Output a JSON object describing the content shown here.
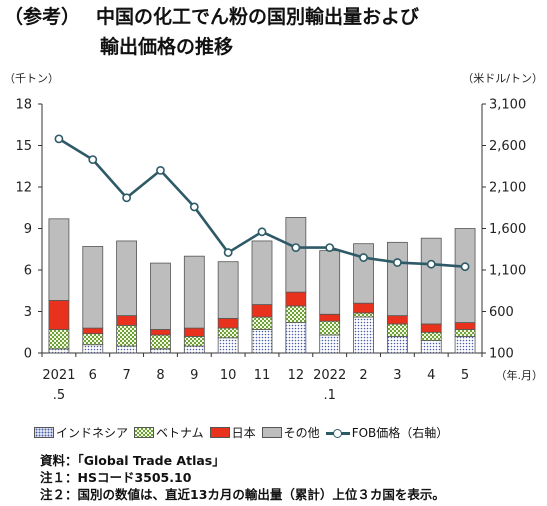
{
  "title": {
    "prefix": "（参考）",
    "line1": "中国の化工でん粉の国別輸出量および",
    "line2": "輸出価格の推移"
  },
  "chart_data": {
    "type": "bar",
    "stacked": true,
    "categories": [
      "2021\n.5",
      "6",
      "7",
      "8",
      "9",
      "10",
      "11",
      "12",
      "2022\n.1",
      "2",
      "3",
      "4",
      "5"
    ],
    "xlabel": "（年.月）",
    "ylabel_left": "（千トン）",
    "ylabel_right": "（米ドル/トン）",
    "ylim_left": [
      0,
      18
    ],
    "yticks_left": [
      0,
      3,
      6,
      9,
      12,
      15,
      18
    ],
    "ylim_right": [
      100,
      3100
    ],
    "yticks_right": [
      100,
      600,
      1100,
      1600,
      2100,
      2600,
      3100
    ],
    "grid": false,
    "legend_position": "bottom",
    "series": [
      {
        "name": "インドネシア",
        "color": "#4a5fa8",
        "values": [
          0.3,
          0.6,
          0.5,
          0.3,
          0.5,
          1.1,
          1.7,
          2.2,
          1.3,
          2.6,
          1.2,
          0.9,
          1.2
        ]
      },
      {
        "name": "ベトナム",
        "color": "#6ea03c",
        "values": [
          1.4,
          0.8,
          1.5,
          1.0,
          0.7,
          0.7,
          0.9,
          1.2,
          1.0,
          0.3,
          0.9,
          0.6,
          0.5
        ]
      },
      {
        "name": "日本",
        "color": "#e8321e",
        "values": [
          2.1,
          0.4,
          0.7,
          0.4,
          0.6,
          0.7,
          0.9,
          1.0,
          0.5,
          0.7,
          0.6,
          0.6,
          0.5
        ]
      },
      {
        "name": "その他",
        "color": "#bdbdbd",
        "values": [
          5.9,
          5.9,
          5.4,
          4.8,
          5.2,
          4.1,
          4.6,
          5.4,
          4.6,
          4.3,
          5.3,
          6.2,
          6.8
        ]
      }
    ],
    "line_series": {
      "name": "FOB価格（右軸）",
      "color": "#2e5a68",
      "axis": "right",
      "values": [
        2680,
        2430,
        1970,
        2300,
        1860,
        1310,
        1560,
        1370,
        1370,
        1250,
        1190,
        1170,
        1140
      ]
    }
  },
  "notes": [
    "資料：「Global Trade Atlas」",
    "注１：HSコード3505.10",
    "注２：国別の数値は、直近13カ月の輸出量（累計）上位３カ国を表示。"
  ]
}
